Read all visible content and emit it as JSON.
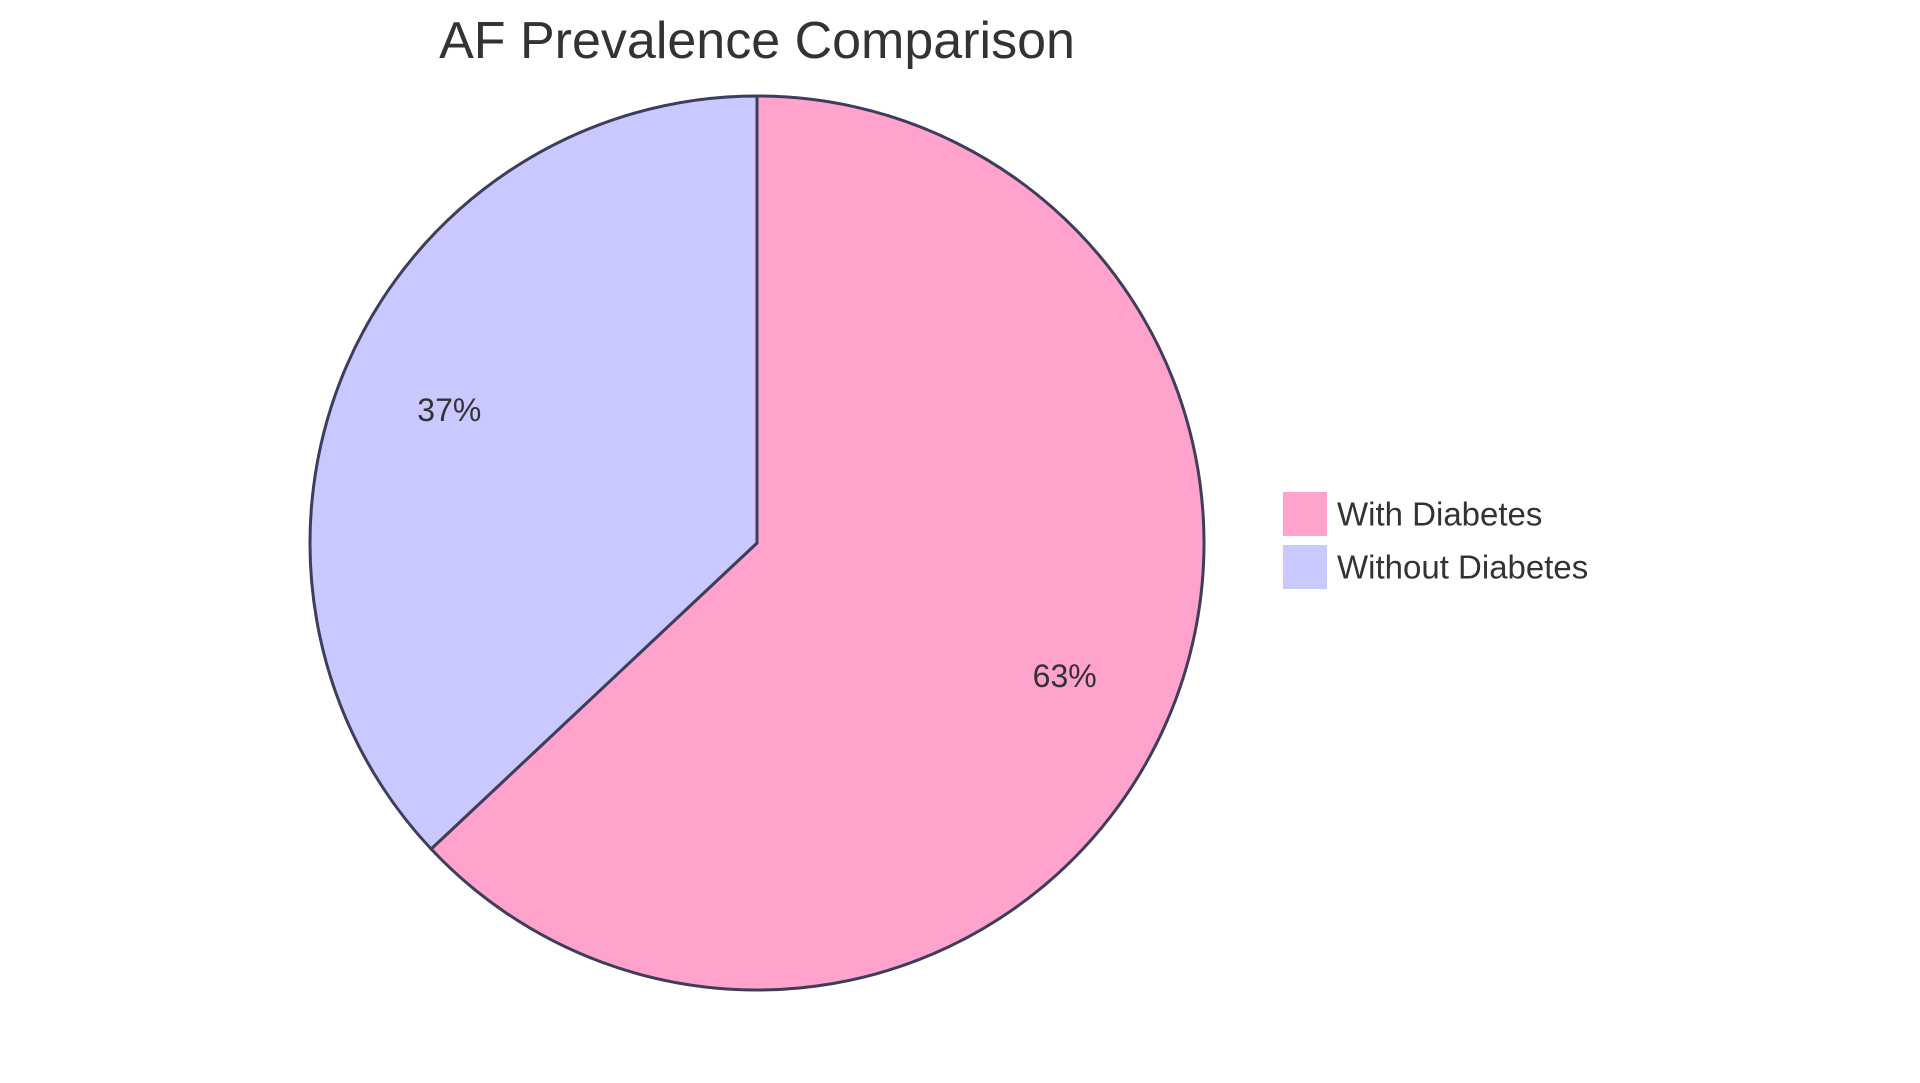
{
  "chart_data": {
    "type": "pie",
    "title": "AF Prevalence Comparison",
    "slices": [
      {
        "label": "With Diabetes",
        "value": 63,
        "display": "63%",
        "color": "#ffa3cc"
      },
      {
        "label": "Without Diabetes",
        "value": 37,
        "display": "37%",
        "color": "#c9c9ff"
      }
    ],
    "legend_position": "right",
    "stroke_color": "#3f3d5c"
  }
}
